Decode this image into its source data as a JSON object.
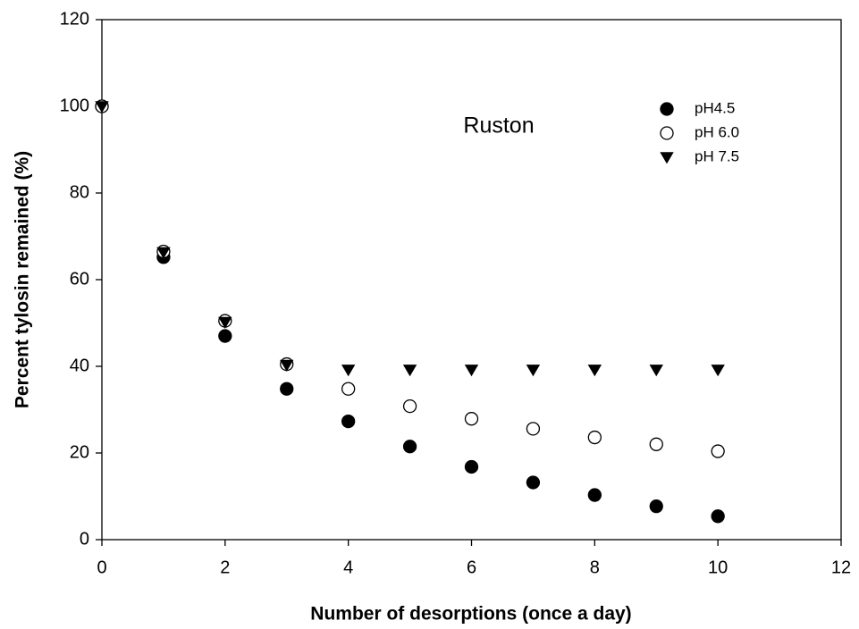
{
  "chart_data": {
    "type": "scatter",
    "x_label": "Number of desorptions (once a day)",
    "y_label": "Percent tylosin remained (%)",
    "annotation": "Ruston",
    "x": [
      0,
      1,
      2,
      3,
      4,
      5,
      6,
      7,
      8,
      9,
      10
    ],
    "series": [
      {
        "name": "pH4.5",
        "color": "#000000",
        "marker": "circle",
        "values": [
          100,
          65.2,
          47,
          34.8,
          27.3,
          21.5,
          16.8,
          13.2,
          10.3,
          7.7,
          5.4
        ]
      },
      {
        "name": "pH 6.0",
        "color": "#000000",
        "marker": "circle-open",
        "values": [
          100,
          66.5,
          50.5,
          40.5,
          34.8,
          30.8,
          27.9,
          25.6,
          23.6,
          22.0,
          20.4
        ]
      },
      {
        "name": "pH 7.5",
        "color": "#000000",
        "marker": "triangle-down",
        "values": [
          100,
          66.3,
          50.2,
          40.3,
          39.2,
          39.2,
          39.2,
          39.2,
          39.2,
          39.2,
          39.2
        ]
      }
    ],
    "xlim": [
      0,
      12
    ],
    "xticks": [
      0,
      2,
      4,
      6,
      8,
      10,
      12
    ],
    "ylim": [
      0,
      120
    ],
    "yticks": [
      0,
      20,
      40,
      60,
      80,
      100,
      120
    ],
    "legend": "upper right",
    "grid": false
  }
}
